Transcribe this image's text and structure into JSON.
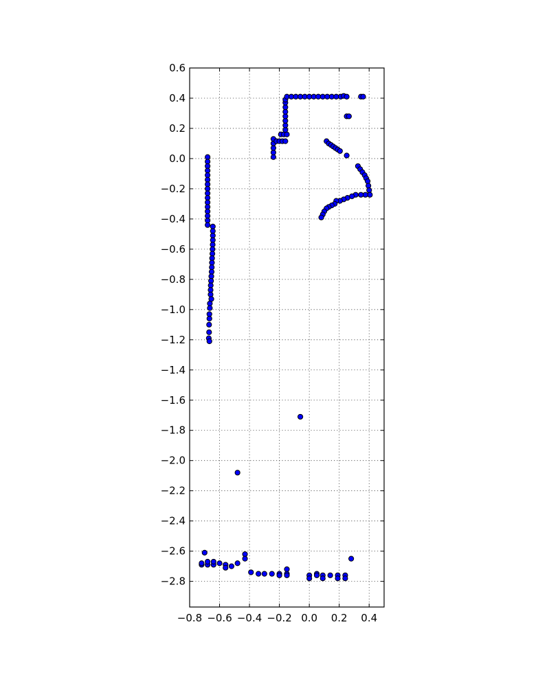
{
  "chart_data": {
    "type": "scatter",
    "title": "",
    "xlabel": "",
    "ylabel": "",
    "xlim": [
      -0.8,
      0.5
    ],
    "ylim": [
      -2.97,
      0.6
    ],
    "grid": true,
    "marker_color": "#0000ff",
    "marker_edge_color": "#000000",
    "x_ticks": [
      -0.8,
      -0.6,
      -0.4,
      -0.2,
      0.0,
      0.2,
      0.4
    ],
    "x_tick_labels": [
      "−0.8",
      "−0.6",
      "−0.4",
      "−0.2",
      "0.0",
      "0.2",
      "0.4"
    ],
    "y_ticks": [
      0.6,
      0.4,
      0.2,
      0.0,
      -0.2,
      -0.4,
      -0.6,
      -0.8,
      -1.0,
      -1.2,
      -1.4,
      -1.6,
      -1.8,
      -2.0,
      -2.2,
      -2.4,
      -2.6,
      -2.8
    ],
    "y_tick_labels": [
      "0.6",
      "0.4",
      "0.2",
      "0.0",
      "−0.2",
      "−0.4",
      "−0.6",
      "−0.8",
      "−1.0",
      "−1.2",
      "−1.4",
      "−1.6",
      "−1.8",
      "−2.0",
      "−2.2",
      "−2.4",
      "−2.6",
      "−2.8"
    ],
    "series": [
      {
        "points": [
          [
            -0.68,
            0.01
          ],
          [
            -0.68,
            -0.02
          ],
          [
            -0.68,
            -0.05
          ],
          [
            -0.68,
            -0.08
          ],
          [
            -0.68,
            -0.11
          ],
          [
            -0.68,
            -0.14
          ],
          [
            -0.68,
            -0.17
          ],
          [
            -0.68,
            -0.2
          ],
          [
            -0.68,
            -0.23
          ],
          [
            -0.68,
            -0.26
          ],
          [
            -0.68,
            -0.29
          ],
          [
            -0.68,
            -0.32
          ],
          [
            -0.68,
            -0.35
          ],
          [
            -0.68,
            -0.38
          ],
          [
            -0.68,
            -0.41
          ],
          [
            -0.68,
            -0.44
          ],
          [
            -0.645,
            -0.45
          ],
          [
            -0.645,
            -0.48
          ],
          [
            -0.645,
            -0.51
          ],
          [
            -0.645,
            -0.54
          ],
          [
            -0.646,
            -0.57
          ],
          [
            -0.647,
            -0.6
          ],
          [
            -0.648,
            -0.63
          ],
          [
            -0.65,
            -0.66
          ],
          [
            -0.651,
            -0.69
          ],
          [
            -0.652,
            -0.72
          ],
          [
            -0.653,
            -0.75
          ],
          [
            -0.655,
            -0.78
          ],
          [
            -0.657,
            -0.81
          ],
          [
            -0.659,
            -0.84
          ],
          [
            -0.66,
            -0.87
          ],
          [
            -0.66,
            -0.9
          ],
          [
            -0.655,
            -0.93
          ],
          [
            -0.665,
            -0.96
          ],
          [
            -0.665,
            -0.99
          ],
          [
            -0.668,
            -1.03
          ],
          [
            -0.668,
            -1.06
          ],
          [
            -0.67,
            -1.1
          ],
          [
            -0.67,
            -1.15
          ],
          [
            -0.672,
            -1.19
          ],
          [
            -0.668,
            -1.21
          ],
          [
            -0.24,
            0.01
          ],
          [
            -0.24,
            0.04
          ],
          [
            -0.24,
            0.07
          ],
          [
            -0.24,
            0.1
          ],
          [
            -0.24,
            0.13
          ],
          [
            -0.22,
            0.115
          ],
          [
            -0.2,
            0.115
          ],
          [
            -0.18,
            0.115
          ],
          [
            -0.16,
            0.115
          ],
          [
            -0.19,
            0.16
          ],
          [
            -0.17,
            0.16
          ],
          [
            -0.15,
            0.16
          ],
          [
            -0.16,
            0.19
          ],
          [
            -0.16,
            0.22
          ],
          [
            -0.16,
            0.25
          ],
          [
            -0.16,
            0.28
          ],
          [
            -0.16,
            0.31
          ],
          [
            -0.16,
            0.34
          ],
          [
            -0.16,
            0.37
          ],
          [
            -0.16,
            0.39
          ],
          [
            -0.15,
            0.41
          ],
          [
            -0.12,
            0.41
          ],
          [
            -0.09,
            0.41
          ],
          [
            -0.06,
            0.41
          ],
          [
            -0.03,
            0.41
          ],
          [
            0.0,
            0.41
          ],
          [
            0.03,
            0.41
          ],
          [
            0.06,
            0.41
          ],
          [
            0.09,
            0.41
          ],
          [
            0.12,
            0.41
          ],
          [
            0.15,
            0.41
          ],
          [
            0.18,
            0.41
          ],
          [
            0.21,
            0.41
          ],
          [
            0.23,
            0.415
          ],
          [
            0.25,
            0.41
          ],
          [
            0.345,
            0.41
          ],
          [
            0.36,
            0.41
          ],
          [
            0.25,
            0.28
          ],
          [
            0.265,
            0.28
          ],
          [
            0.115,
            0.115
          ],
          [
            0.13,
            0.1
          ],
          [
            0.145,
            0.09
          ],
          [
            0.16,
            0.08
          ],
          [
            0.175,
            0.07
          ],
          [
            0.19,
            0.06
          ],
          [
            0.205,
            0.05
          ],
          [
            0.25,
            0.02
          ],
          [
            0.325,
            -0.05
          ],
          [
            0.34,
            -0.07
          ],
          [
            0.355,
            -0.09
          ],
          [
            0.37,
            -0.11
          ],
          [
            0.38,
            -0.13
          ],
          [
            0.39,
            -0.15
          ],
          [
            0.395,
            -0.18
          ],
          [
            0.4,
            -0.21
          ],
          [
            0.405,
            -0.24
          ],
          [
            0.375,
            -0.24
          ],
          [
            0.345,
            -0.24
          ],
          [
            0.31,
            -0.24
          ],
          [
            0.285,
            -0.25
          ],
          [
            0.255,
            -0.26
          ],
          [
            0.23,
            -0.27
          ],
          [
            0.205,
            -0.28
          ],
          [
            0.18,
            -0.28
          ],
          [
            0.17,
            -0.3
          ],
          [
            0.15,
            -0.31
          ],
          [
            0.13,
            -0.32
          ],
          [
            0.115,
            -0.33
          ],
          [
            0.1,
            -0.35
          ],
          [
            0.09,
            -0.37
          ],
          [
            0.08,
            -0.39
          ],
          [
            -0.06,
            -1.71
          ],
          [
            -0.48,
            -2.08
          ],
          [
            -0.72,
            -2.69
          ],
          [
            -0.72,
            -2.68
          ],
          [
            -0.7,
            -2.61
          ],
          [
            -0.68,
            -2.69
          ],
          [
            -0.68,
            -2.67
          ],
          [
            -0.64,
            -2.69
          ],
          [
            -0.64,
            -2.67
          ],
          [
            -0.6,
            -2.68
          ],
          [
            -0.56,
            -2.69
          ],
          [
            -0.56,
            -2.71
          ],
          [
            -0.52,
            -2.7
          ],
          [
            -0.48,
            -2.68
          ],
          [
            -0.43,
            -2.62
          ],
          [
            -0.43,
            -2.65
          ],
          [
            -0.39,
            -2.74
          ],
          [
            -0.34,
            -2.75
          ],
          [
            -0.3,
            -2.75
          ],
          [
            -0.25,
            -2.75
          ],
          [
            -0.2,
            -2.75
          ],
          [
            -0.2,
            -2.76
          ],
          [
            -0.15,
            -2.72
          ],
          [
            -0.15,
            -2.75
          ],
          [
            -0.15,
            -2.76
          ],
          [
            0.0,
            -2.76
          ],
          [
            0.0,
            -2.78
          ],
          [
            0.05,
            -2.75
          ],
          [
            0.05,
            -2.76
          ],
          [
            0.09,
            -2.76
          ],
          [
            0.09,
            -2.78
          ],
          [
            0.14,
            -2.76
          ],
          [
            0.19,
            -2.76
          ],
          [
            0.19,
            -2.78
          ],
          [
            0.24,
            -2.76
          ],
          [
            0.24,
            -2.78
          ],
          [
            0.28,
            -2.65
          ]
        ]
      }
    ]
  }
}
